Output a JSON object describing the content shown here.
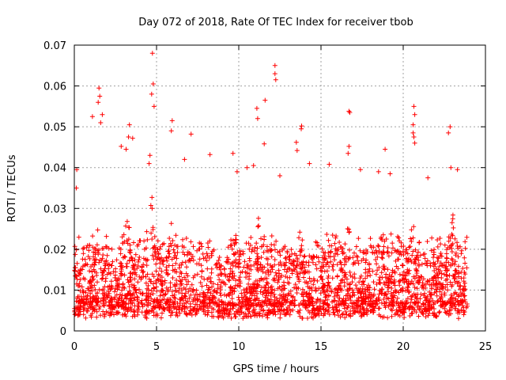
{
  "chart_data": {
    "type": "scatter",
    "title": "Day 072 of 2018, Rate Of TEC Index for receiver tbob",
    "xlabel": "GPS time / hours",
    "ylabel": "ROTI / TECUs",
    "xlim": [
      0,
      25
    ],
    "ylim": [
      0,
      0.07
    ],
    "xticks": [
      0,
      5,
      10,
      15,
      20,
      25
    ],
    "yticks": [
      0,
      0.01,
      0.02,
      0.03,
      0.04,
      0.05,
      0.06,
      0.07
    ],
    "xtick_labels": [
      "0",
      "5",
      "10",
      "15",
      "20",
      "25"
    ],
    "ytick_labels": [
      "0",
      "0.01",
      "0.02",
      "0.03",
      "0.04",
      "0.05",
      "0.06",
      "0.07"
    ],
    "grid": true,
    "marker": "+",
    "color": "#ff0000",
    "series": [
      {
        "name": "ROTI",
        "x_range": [
          0,
          23.9
        ],
        "typical_range": [
          0.003,
          0.02
        ],
        "notable_points": [
          {
            "x": 4.75,
            "y": 0.068
          },
          {
            "x": 4.8,
            "y": 0.0605
          },
          {
            "x": 4.7,
            "y": 0.058
          },
          {
            "x": 4.85,
            "y": 0.055
          },
          {
            "x": 12.2,
            "y": 0.065
          },
          {
            "x": 12.25,
            "y": 0.0615
          },
          {
            "x": 12.2,
            "y": 0.063
          },
          {
            "x": 11.6,
            "y": 0.0565
          },
          {
            "x": 11.1,
            "y": 0.0545
          },
          {
            "x": 11.15,
            "y": 0.052
          },
          {
            "x": 1.5,
            "y": 0.0595
          },
          {
            "x": 1.55,
            "y": 0.0575
          },
          {
            "x": 1.45,
            "y": 0.056
          },
          {
            "x": 1.7,
            "y": 0.053
          },
          {
            "x": 1.1,
            "y": 0.0525
          },
          {
            "x": 1.6,
            "y": 0.051
          },
          {
            "x": 3.35,
            "y": 0.0505
          },
          {
            "x": 5.95,
            "y": 0.0515
          },
          {
            "x": 5.9,
            "y": 0.049
          },
          {
            "x": 7.1,
            "y": 0.0482
          },
          {
            "x": 11.55,
            "y": 0.0458
          },
          {
            "x": 13.8,
            "y": 0.0495
          },
          {
            "x": 13.82,
            "y": 0.0502
          },
          {
            "x": 13.5,
            "y": 0.0462
          },
          {
            "x": 13.55,
            "y": 0.0442
          },
          {
            "x": 16.7,
            "y": 0.0538
          },
          {
            "x": 16.75,
            "y": 0.0535
          },
          {
            "x": 16.7,
            "y": 0.0452
          },
          {
            "x": 16.65,
            "y": 0.0435
          },
          {
            "x": 18.9,
            "y": 0.0445
          },
          {
            "x": 20.65,
            "y": 0.055
          },
          {
            "x": 20.7,
            "y": 0.053
          },
          {
            "x": 20.6,
            "y": 0.0505
          },
          {
            "x": 20.6,
            "y": 0.0485
          },
          {
            "x": 20.65,
            "y": 0.0475
          },
          {
            "x": 20.7,
            "y": 0.046
          },
          {
            "x": 22.85,
            "y": 0.05
          },
          {
            "x": 22.75,
            "y": 0.0485
          },
          {
            "x": 8.25,
            "y": 0.0432
          },
          {
            "x": 0.15,
            "y": 0.0395
          },
          {
            "x": 0.12,
            "y": 0.035
          },
          {
            "x": 3.3,
            "y": 0.0475
          },
          {
            "x": 3.55,
            "y": 0.0472
          },
          {
            "x": 2.85,
            "y": 0.0452
          },
          {
            "x": 3.15,
            "y": 0.0445
          },
          {
            "x": 4.6,
            "y": 0.043
          },
          {
            "x": 4.55,
            "y": 0.041
          },
          {
            "x": 6.7,
            "y": 0.042
          },
          {
            "x": 9.65,
            "y": 0.0435
          },
          {
            "x": 9.9,
            "y": 0.039
          },
          {
            "x": 10.5,
            "y": 0.04
          },
          {
            "x": 10.9,
            "y": 0.0405
          },
          {
            "x": 12.5,
            "y": 0.038
          },
          {
            "x": 14.3,
            "y": 0.041
          },
          {
            "x": 15.5,
            "y": 0.0408
          },
          {
            "x": 17.4,
            "y": 0.0395
          },
          {
            "x": 18.5,
            "y": 0.039
          },
          {
            "x": 19.2,
            "y": 0.0385
          },
          {
            "x": 21.5,
            "y": 0.0375
          },
          {
            "x": 22.9,
            "y": 0.04
          },
          {
            "x": 23.3,
            "y": 0.0395
          }
        ]
      }
    ]
  }
}
